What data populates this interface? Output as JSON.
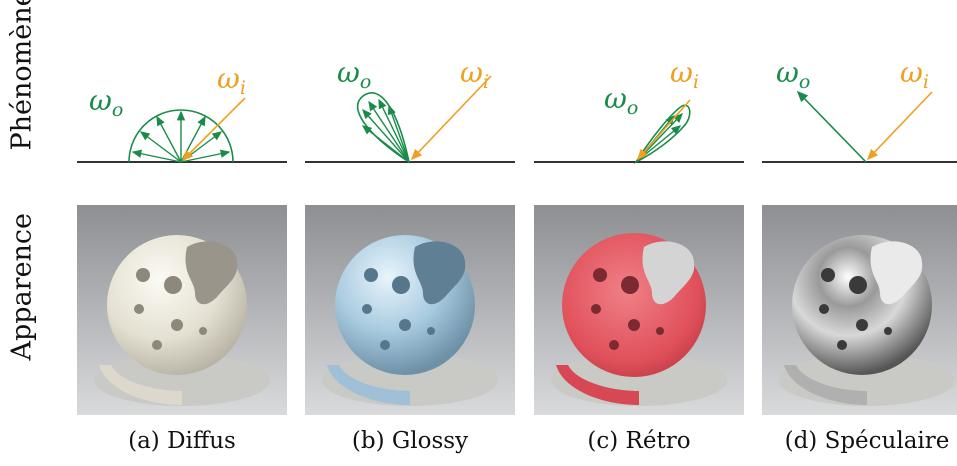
{
  "row_labels": {
    "phenomenon": "Phénomène",
    "appearance": "Apparence"
  },
  "captions": [
    "(a) Diffus",
    "(b) Glossy",
    "(c) Rétro",
    "(d) Spéculaire"
  ],
  "symbols": {
    "omega_o": "ω",
    "o_sub": "o",
    "omega_i": "ω",
    "i_sub": "i"
  },
  "colors": {
    "outgoing": "#1a8c4a",
    "incoming": "#f0a020",
    "surface": "#333333",
    "diffuse_material": "#e8e4d8",
    "glossy_material": "#a9cbe0",
    "retro_material": "#e0505a",
    "specular_material": "#c8c8c8"
  }
}
